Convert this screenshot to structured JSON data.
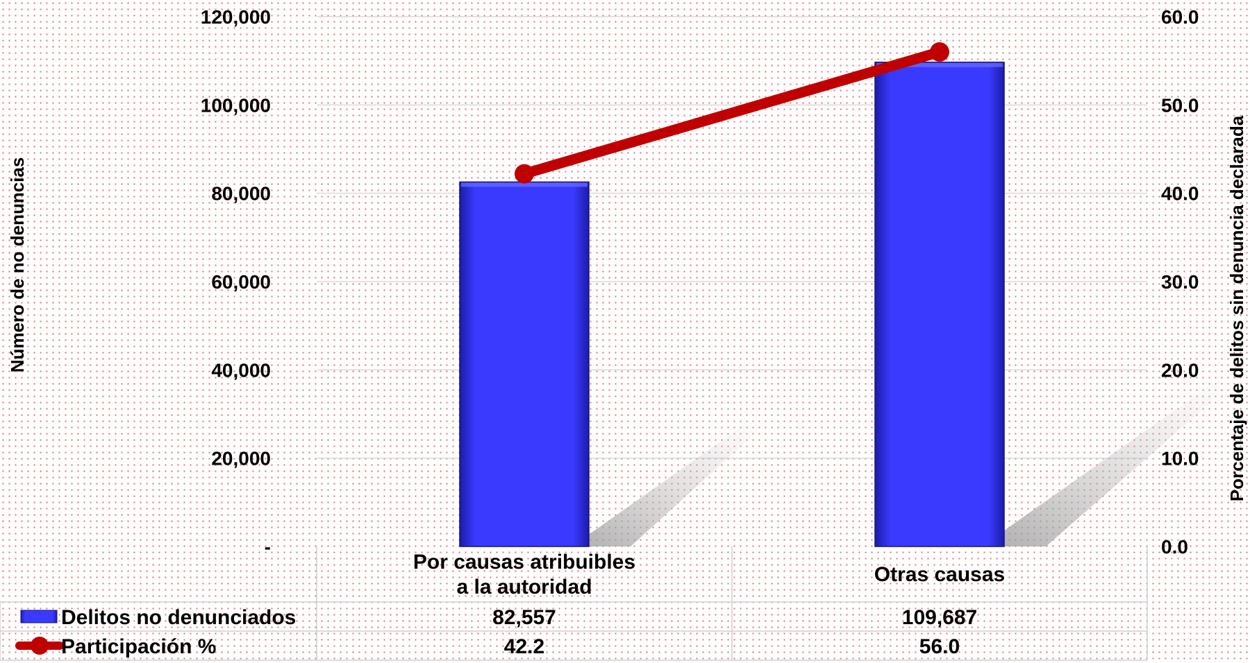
{
  "chart_data": {
    "type": "bar",
    "categories": [
      "Por causas atribuibles\na la autoridad",
      "Otras causas"
    ],
    "series": [
      {
        "name": "Delitos no denunciados",
        "type": "bar",
        "axis": "left",
        "values": [
          82557,
          109687
        ],
        "labels": [
          "82,557",
          "109,687"
        ],
        "color": "#3a3aff"
      },
      {
        "name": "Participación %",
        "type": "line",
        "axis": "right",
        "values": [
          42.2,
          56.0
        ],
        "labels": [
          "42.2",
          "56.0"
        ],
        "color": "#c00000"
      }
    ],
    "ylabel": "Número de no denuncias",
    "y2label": "Porcentaje de delitos sin denuncia declarada",
    "ylim": [
      0,
      120000
    ],
    "y2lim": [
      0,
      60
    ],
    "yticks": [
      "-",
      "20,000",
      "40,000",
      "60,000",
      "80,000",
      "100,000",
      "120,000"
    ],
    "y2ticks": [
      "0.0",
      "10.0",
      "20.0",
      "30.0",
      "40.0",
      "50.0",
      "60.0"
    ],
    "grid": true,
    "legend": "data-table"
  }
}
